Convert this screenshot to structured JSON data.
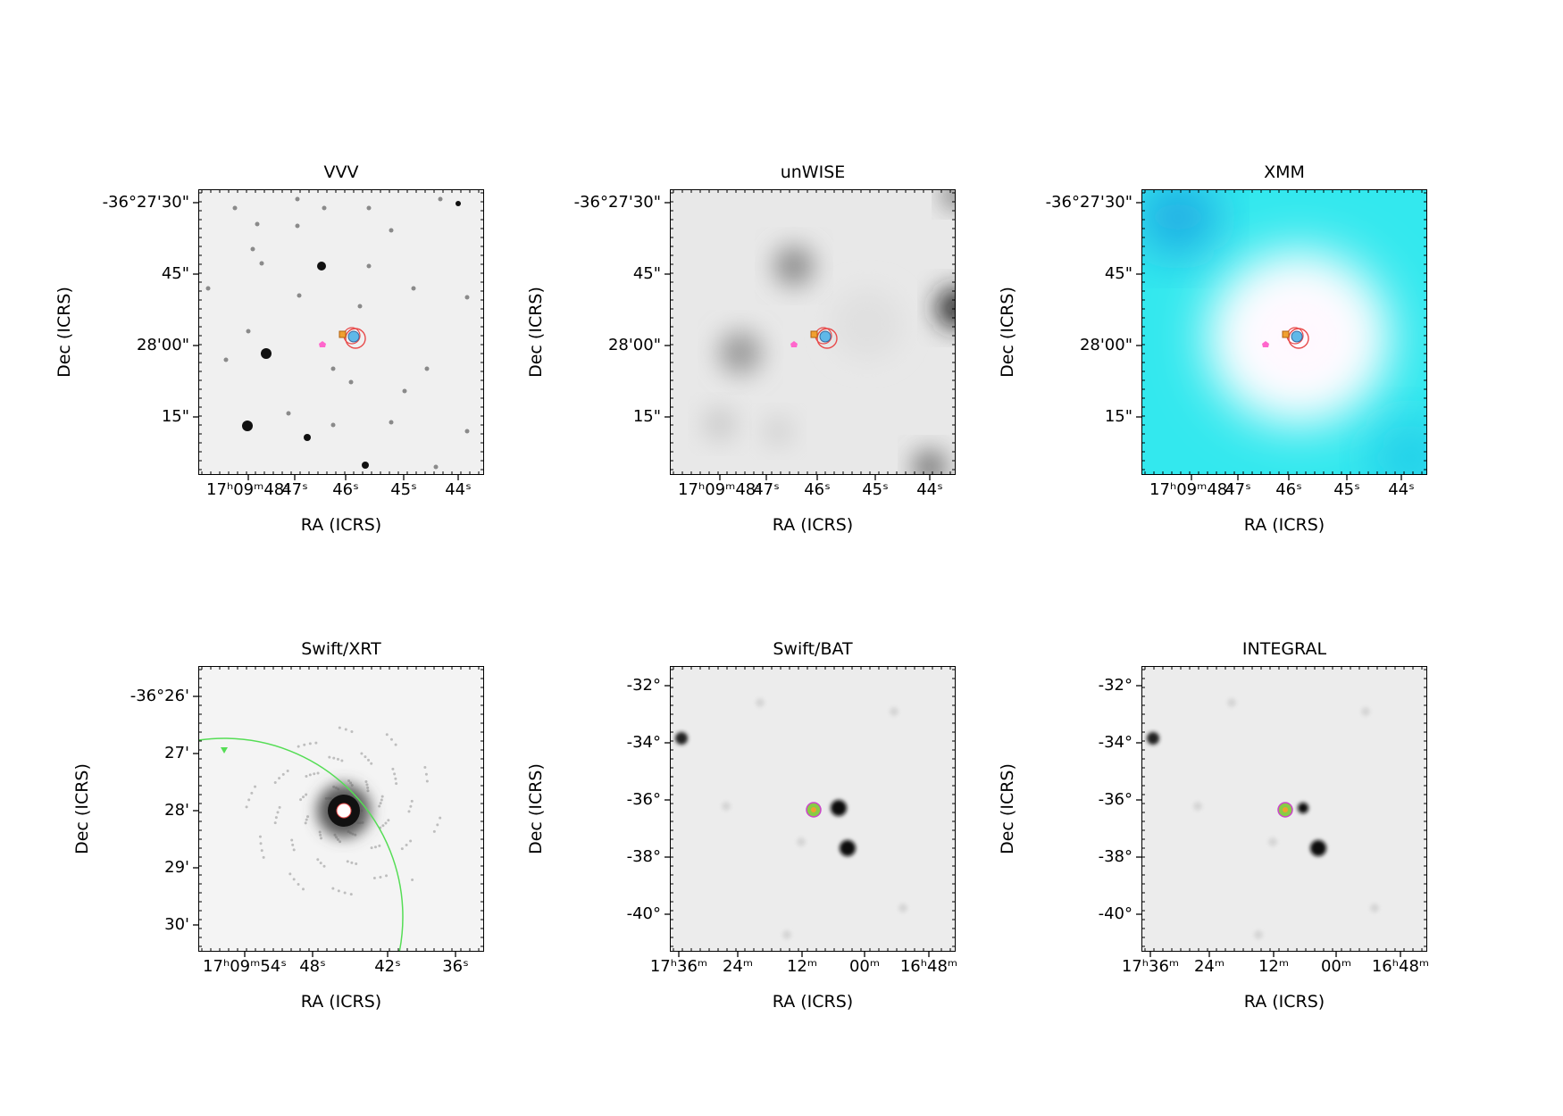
{
  "panels": [
    {
      "title": "VVV",
      "xlabel": "RA (ICRS)",
      "ylabel": "Dec (ICRS)",
      "yticks": [
        "-36°27'30\"",
        "45\"",
        "28'00\"",
        "15\""
      ],
      "xticks": [
        "17ʰ09ᵐ48ˢ",
        "47ˢ",
        "46ˢ",
        "45ˢ",
        "44ˢ"
      ],
      "background": "#f0f0f0"
    },
    {
      "title": "unWISE",
      "xlabel": "RA (ICRS)",
      "ylabel": "Dec (ICRS)",
      "yticks": [
        "-36°27'30\"",
        "45\"",
        "28'00\"",
        "15\""
      ],
      "xticks": [
        "17ʰ09ᵐ48ˢ",
        "47ˢ",
        "46ˢ",
        "45ˢ",
        "44ˢ"
      ],
      "background": "#e8e8e8"
    },
    {
      "title": "XMM",
      "xlabel": "RA (ICRS)",
      "ylabel": "Dec (ICRS)",
      "yticks": [
        "-36°27'30\"",
        "45\"",
        "28'00\"",
        "15\""
      ],
      "xticks": [
        "17ʰ09ᵐ48ˢ",
        "47ˢ",
        "46ˢ",
        "45ˢ",
        "44ˢ"
      ],
      "background": "#33e8ee"
    },
    {
      "title": "Swift/XRT",
      "xlabel": "RA (ICRS)",
      "ylabel": "Dec (ICRS)",
      "yticks": [
        "-36°26'",
        "27'",
        "28'",
        "29'",
        "30'"
      ],
      "xticks": [
        "17ʰ09ᵐ54ˢ",
        "48ˢ",
        "42ˢ",
        "36ˢ"
      ],
      "background": "#f4f4f4"
    },
    {
      "title": "Swift/BAT",
      "xlabel": "RA (ICRS)",
      "ylabel": "Dec (ICRS)",
      "yticks": [
        "-32°",
        "-34°",
        "-36°",
        "-38°",
        "-40°"
      ],
      "xticks": [
        "17ʰ36ᵐ",
        "24ᵐ",
        "12ᵐ",
        "00ᵐ",
        "16ʰ48ᵐ"
      ],
      "background": "#ececec"
    },
    {
      "title": "INTEGRAL",
      "xlabel": "RA (ICRS)",
      "ylabel": "Dec (ICRS)",
      "yticks": [
        "-32°",
        "-34°",
        "-36°",
        "-38°",
        "-40°"
      ],
      "xticks": [
        "17ʰ36ᵐ",
        "24ᵐ",
        "12ᵐ",
        "00ᵐ",
        "16ʰ48ᵐ"
      ],
      "background": "#ececec"
    }
  ]
}
